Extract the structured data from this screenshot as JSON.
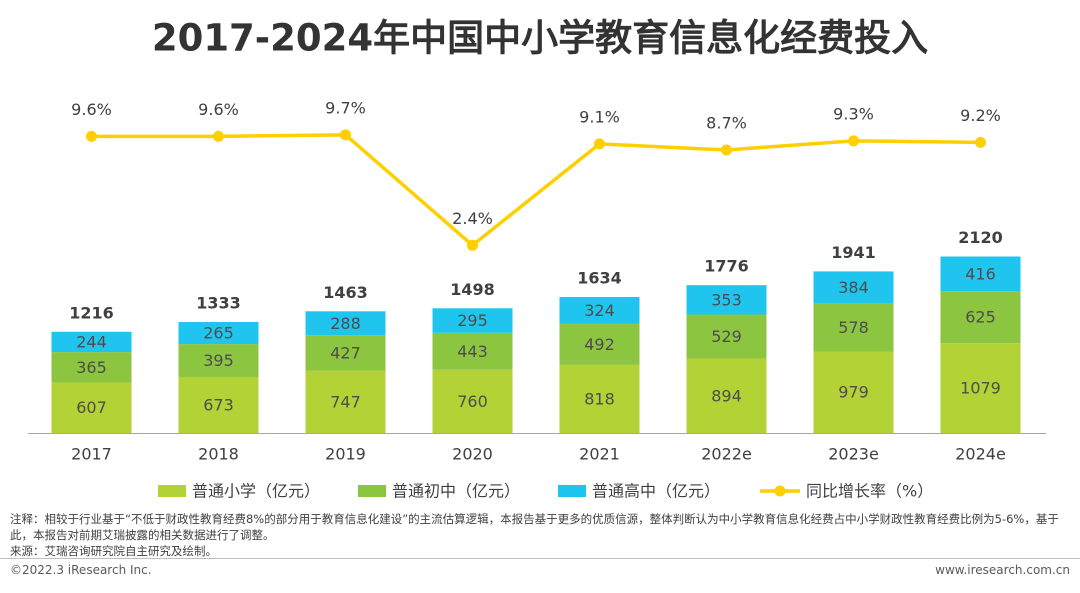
{
  "chart_data": {
    "type": "bar",
    "stacked": true,
    "title": "2017-2024年中国中小学教育信息化经费投入",
    "categories": [
      "2017",
      "2018",
      "2019",
      "2020",
      "2021",
      "2022e",
      "2023e",
      "2024e"
    ],
    "series": [
      {
        "name": "普通小学（亿元）",
        "color": "#b3d235",
        "values": [
          607,
          673,
          747,
          760,
          818,
          894,
          979,
          1079
        ]
      },
      {
        "name": "普通初中（亿元）",
        "color": "#8cc540",
        "values": [
          365,
          395,
          427,
          443,
          492,
          529,
          578,
          625
        ]
      },
      {
        "name": "普通高中（亿元）",
        "color": "#1fc5ef",
        "values": [
          244,
          265,
          288,
          295,
          324,
          353,
          384,
          416
        ]
      },
      {
        "name": "同比增长率（%）",
        "color": "#ffcf00",
        "type": "line",
        "axis": "y2",
        "values": [
          9.6,
          9.6,
          9.7,
          2.4,
          9.1,
          8.7,
          9.3,
          9.2
        ],
        "value_labels": [
          "9.6%",
          "9.6%",
          "9.7%",
          "2.4%",
          "9.1%",
          "8.7%",
          "9.3%",
          "9.2%"
        ]
      }
    ],
    "totals": [
      1216,
      1333,
      1463,
      1498,
      1634,
      1776,
      1941,
      2120
    ],
    "ylim": [
      0,
      4000
    ],
    "y2lim": [
      -10,
      12
    ],
    "legend": "bottom",
    "note": "注释：相较于行业基于“不低于财政性教育经费8%的部分用于教育信息化建设”的主流估算逻辑，本报告基于更多的优质信源，整体判断认为中小学教育信息化经费占中小学财政性教育经费比例为5-6%，基于此，本报告对前期艾瑞披露的相关数据进行了调整。",
    "source": "来源：艾瑞咨询研究院自主研究及绘制。",
    "copyright": "©2022.3 iResearch Inc.",
    "website": "www.iresearch.com.cn"
  }
}
